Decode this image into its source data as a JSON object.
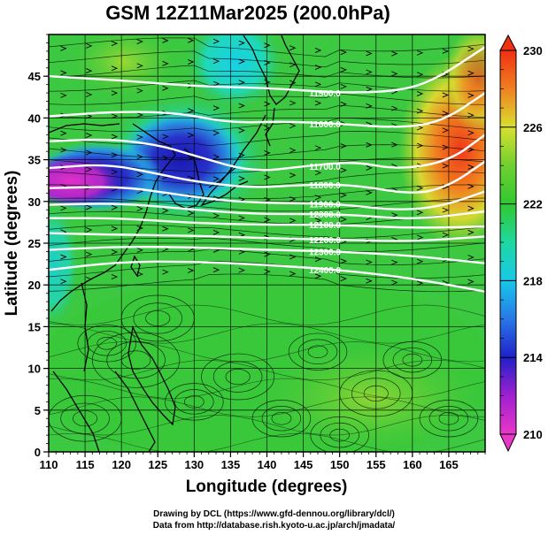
{
  "title": "GSM 12Z11Mar2025 (200.0hPa)",
  "credits": {
    "line1": "Drawing by DCL (https://www.gfd-dennou.org/library/dcl/)",
    "line2": "Data from http://database.rish.kyoto-u.ac.jp/arch/jmadata/"
  },
  "chart_data": {
    "type": "heatmap",
    "title": "GSM 12Z11Mar2025 (200.0hPa)",
    "xlabel": "Longitude (degrees)",
    "ylabel": "Latitude  (degrees)",
    "xlim": [
      110,
      170
    ],
    "ylim": [
      0,
      50
    ],
    "x_ticks": [
      "110",
      "115",
      "120",
      "125",
      "130",
      "135",
      "140",
      "145",
      "150",
      "155",
      "160",
      "165"
    ],
    "y_ticks": [
      "0",
      "5",
      "10",
      "15",
      "20",
      "25",
      "30",
      "35",
      "40",
      "45"
    ],
    "grid": true,
    "colorbar": {
      "ticks": [
        "210",
        "214",
        "218",
        "222",
        "226",
        "230"
      ],
      "range": [
        210,
        230
      ],
      "colors": [
        "#e040c0",
        "#2020c8",
        "#18d0e8",
        "#30c830",
        "#d8e030",
        "#f03010"
      ]
    },
    "contours": {
      "color": "#ffffff",
      "labels": [
        "11500.0",
        "11600.0",
        "11700.0",
        "11800.0",
        "11900.0",
        "12000.0",
        "12100.0",
        "12200.0",
        "12300.0",
        "12400.0"
      ],
      "lines": [
        {
          "label": "11500.0",
          "points": [
            [
              110,
              45.0
            ],
            [
              120,
              44.5
            ],
            [
              130,
              43.8
            ],
            [
              140,
              43.6
            ],
            [
              150,
              43.0
            ],
            [
              158,
              43.2
            ],
            [
              163,
              44.5
            ],
            [
              170,
              48.5
            ]
          ]
        },
        {
          "label": "11600.0",
          "points": [
            [
              110,
              40.2
            ],
            [
              120,
              40.8
            ],
            [
              128,
              40.6
            ],
            [
              135,
              39.4
            ],
            [
              142,
              39.6
            ],
            [
              150,
              39.3
            ],
            [
              158,
              38.8
            ],
            [
              164,
              39.5
            ],
            [
              170,
              43.0
            ]
          ]
        },
        {
          "label": "11700.0",
          "points": [
            [
              110,
              37.2
            ],
            [
              118,
              37.5
            ],
            [
              125,
              36.8
            ],
            [
              130,
              35.5
            ],
            [
              138,
              33.5
            ],
            [
              145,
              34.2
            ],
            [
              152,
              34.8
            ],
            [
              158,
              33.8
            ],
            [
              165,
              34.8
            ],
            [
              170,
              38.0
            ]
          ]
        },
        {
          "label": "11800.0",
          "points": [
            [
              110,
              34.0
            ],
            [
              118,
              34.5
            ],
            [
              125,
              33.3
            ],
            [
              130,
              32.4
            ],
            [
              138,
              31.6
            ],
            [
              145,
              32.0
            ],
            [
              152,
              32.0
            ],
            [
              160,
              30.8
            ],
            [
              165,
              31.8
            ],
            [
              170,
              34.8
            ]
          ]
        },
        {
          "label": "11900.0",
          "points": [
            [
              110,
              31.6
            ],
            [
              120,
              31.8
            ],
            [
              128,
              30.8
            ],
            [
              135,
              30.0
            ],
            [
              142,
              29.8
            ],
            [
              150,
              29.7
            ],
            [
              158,
              28.9
            ],
            [
              164,
              29.4
            ],
            [
              170,
              31.2
            ]
          ]
        },
        {
          "label": "12000.0",
          "points": [
            [
              110,
              29.6
            ],
            [
              120,
              29.8
            ],
            [
              130,
              29.0
            ],
            [
              138,
              28.5
            ],
            [
              145,
              28.5
            ],
            [
              152,
              28.4
            ],
            [
              160,
              27.8
            ],
            [
              170,
              28.8
            ]
          ]
        },
        {
          "label": "12100.0",
          "points": [
            [
              110,
              28.0
            ],
            [
              120,
              28.0
            ],
            [
              130,
              27.4
            ],
            [
              140,
              27.2
            ],
            [
              150,
              27.2
            ],
            [
              160,
              26.8
            ],
            [
              170,
              27.0
            ]
          ]
        },
        {
          "label": "12200.0",
          "points": [
            [
              110,
              26.2
            ],
            [
              120,
              26.0
            ],
            [
              130,
              25.9
            ],
            [
              140,
              25.6
            ],
            [
              150,
              25.4
            ],
            [
              160,
              25.2
            ],
            [
              170,
              25.8
            ]
          ]
        },
        {
          "label": "12300.0",
          "points": [
            [
              110,
              24.2
            ],
            [
              120,
              24.6
            ],
            [
              130,
              24.5
            ],
            [
              140,
              24.2
            ],
            [
              150,
              24.0
            ],
            [
              160,
              23.5
            ],
            [
              170,
              22.6
            ]
          ]
        },
        {
          "label": "12400.0",
          "points": [
            [
              110,
              21.8
            ],
            [
              120,
              22.8
            ],
            [
              130,
              22.8
            ],
            [
              140,
              22.4
            ],
            [
              150,
              21.8
            ],
            [
              160,
              20.8
            ],
            [
              170,
              19.2
            ]
          ]
        }
      ]
    }
  }
}
